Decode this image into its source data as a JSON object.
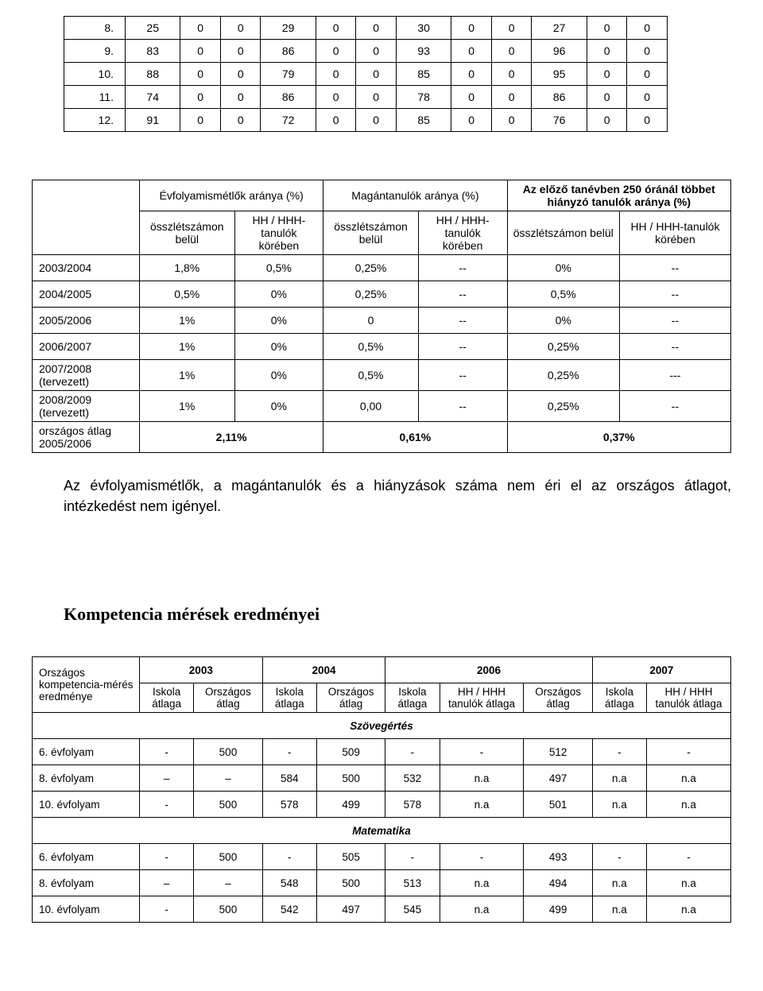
{
  "table1": {
    "rows": [
      [
        "8.",
        "25",
        "0",
        "0",
        "29",
        "0",
        "0",
        "30",
        "0",
        "0",
        "27",
        "0",
        "0"
      ],
      [
        "9.",
        "83",
        "0",
        "0",
        "86",
        "0",
        "0",
        "93",
        "0",
        "0",
        "96",
        "0",
        "0"
      ],
      [
        "10.",
        "88",
        "0",
        "0",
        "79",
        "0",
        "0",
        "85",
        "0",
        "0",
        "95",
        "0",
        "0"
      ],
      [
        "11.",
        "74",
        "0",
        "0",
        "86",
        "0",
        "0",
        "78",
        "0",
        "0",
        "86",
        "0",
        "0"
      ],
      [
        "12.",
        "91",
        "0",
        "0",
        "72",
        "0",
        "0",
        "85",
        "0",
        "0",
        "76",
        "0",
        "0"
      ]
    ]
  },
  "table2": {
    "group_headers": [
      "Évfolyamismétlők aránya (%)",
      "Magántanulók aránya (%)",
      "Az előző tanévben 250 óránál többet hiányzó tanulók aránya (%)"
    ],
    "sub_a": "összlétszámon belül",
    "sub_b": "HH / HHH-tanulók körében",
    "rows": [
      {
        "label": "2003/2004",
        "c": [
          "1,8%",
          "0,5%",
          "0,25%",
          "--",
          "0%",
          "--"
        ]
      },
      {
        "label": "2004/2005",
        "c": [
          "0,5%",
          "0%",
          "0,25%",
          "--",
          "0,5%",
          "--"
        ]
      },
      {
        "label": "2005/2006",
        "c": [
          "1%",
          "0%",
          "0",
          "--",
          "0%",
          "--"
        ]
      },
      {
        "label": "2006/2007",
        "c": [
          "1%",
          "0%",
          "0,5%",
          "--",
          "0,25%",
          "--"
        ]
      },
      {
        "label": "2007/2008 (tervezett)",
        "c": [
          "1%",
          "0%",
          "0,5%",
          "--",
          "0,25%",
          "---"
        ]
      },
      {
        "label": "2008/2009 (tervezett)",
        "c": [
          "1%",
          "0%",
          "0,00",
          "--",
          "0,25%",
          "--"
        ]
      }
    ],
    "avg_label": "országos átlag 2005/2006",
    "avg": [
      "2,11%",
      "0,61%",
      "0,37%"
    ]
  },
  "paragraph": "Az évfolyamismétlők, a magántanulók és a hiányzások száma nem éri el az országos átlagot, intézkedést nem igényel.",
  "heading2": "Kompetencia mérések eredményei",
  "table3": {
    "years": [
      "2003",
      "2004",
      "2006",
      "2007"
    ],
    "side_label": "Országos kompetencia-mérés eredménye",
    "cols": {
      "iskola": "Iskola átlaga",
      "orszagos": "Országos átlag",
      "hh": "HH / HHH tanulók átlaga"
    },
    "section1": "Szövegértés",
    "s1_rows": [
      {
        "label": "6. évfolyam",
        "c": [
          "-",
          "500",
          "-",
          "509",
          "-",
          "-",
          "512",
          "-",
          "-"
        ]
      },
      {
        "label": "8. évfolyam",
        "c": [
          "–",
          "–",
          "584",
          "500",
          "532",
          "n.a",
          "497",
          "n.a",
          "n.a"
        ]
      },
      {
        "label": "10. évfolyam",
        "c": [
          "-",
          "500",
          "578",
          "499",
          "578",
          "n.a",
          "501",
          "n.a",
          "n.a"
        ]
      }
    ],
    "section2": "Matematika",
    "s2_rows": [
      {
        "label": "6. évfolyam",
        "c": [
          "-",
          "500",
          "-",
          "505",
          "-",
          "-",
          "493",
          "-",
          "-"
        ]
      },
      {
        "label": "8. évfolyam",
        "c": [
          "–",
          "–",
          "548",
          "500",
          "513",
          "n.a",
          "494",
          "n.a",
          "n.a"
        ]
      },
      {
        "label": "10. évfolyam",
        "c": [
          "-",
          "500",
          "542",
          "497",
          "545",
          "n.a",
          "499",
          "n.a",
          "n.a"
        ]
      }
    ]
  }
}
